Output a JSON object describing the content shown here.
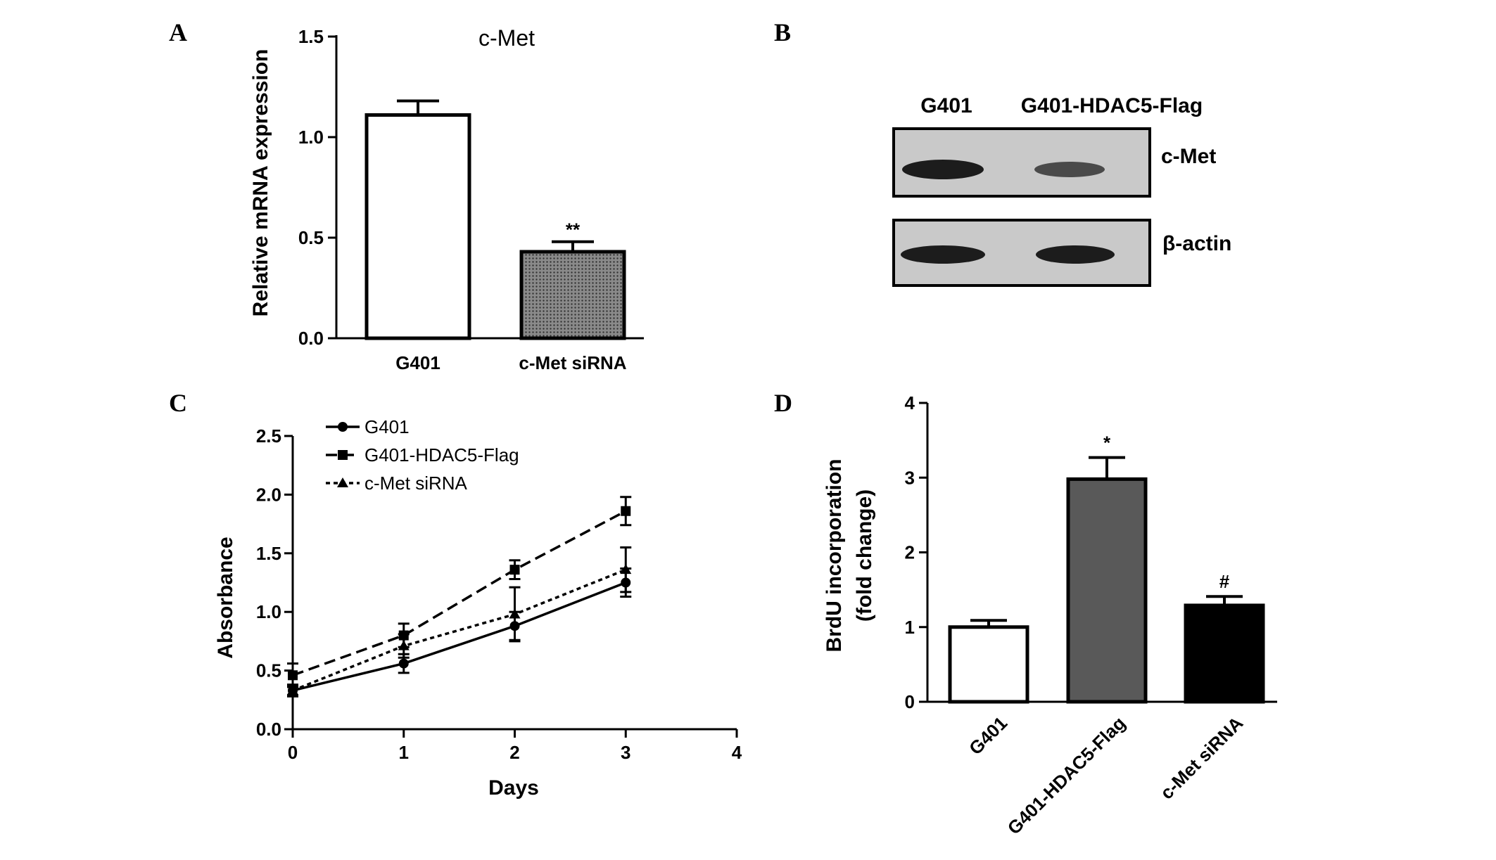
{
  "panels": {
    "A": "A",
    "B": "B",
    "C": "C",
    "D": "D"
  },
  "chart_data": [
    {
      "panel": "A",
      "type": "bar",
      "title": "c-Met",
      "ylabel": "Relative mRNA expression",
      "xlabel": "",
      "ylim": [
        0,
        1.5
      ],
      "yticks": [
        "0.0",
        "0.5",
        "1.0",
        "1.5"
      ],
      "categories": [
        "G401",
        "c-Met siRNA"
      ],
      "values": [
        1.11,
        0.43
      ],
      "errors": [
        0.07,
        0.05
      ],
      "annotations": [
        "",
        "**"
      ],
      "fills": [
        "#ffffff",
        "#666666"
      ]
    },
    {
      "panel": "C",
      "type": "line",
      "xlabel": "Days",
      "ylabel": "Absorbance",
      "xlim": [
        0,
        4
      ],
      "ylim": [
        0,
        2.5
      ],
      "xticks": [
        "0",
        "1",
        "2",
        "3",
        "4"
      ],
      "yticks": [
        "0.0",
        "0.5",
        "1.0",
        "1.5",
        "2.0",
        "2.5"
      ],
      "x": [
        0,
        1,
        2,
        3
      ],
      "legend_position": "top-left",
      "series": [
        {
          "name": "G401",
          "marker": "circle",
          "dash": "solid",
          "values": [
            0.33,
            0.56,
            0.88,
            1.25
          ],
          "errors": [
            0.04,
            0.08,
            0.12,
            0.12
          ]
        },
        {
          "name": "G401-HDAC5-Flag",
          "marker": "square",
          "dash": "dashed",
          "values": [
            0.46,
            0.8,
            1.36,
            1.86
          ],
          "errors": [
            0.1,
            0.1,
            0.08,
            0.12
          ]
        },
        {
          "name": "c-Met siRNA",
          "marker": "triangle",
          "dash": "dotted",
          "values": [
            0.33,
            0.71,
            0.98,
            1.36
          ],
          "errors": [
            0.05,
            0.1,
            0.23,
            0.19
          ]
        }
      ]
    },
    {
      "panel": "D",
      "type": "bar",
      "ylabel_lines": [
        "BrdU incorporation",
        "(fold change)"
      ],
      "xlabel": "",
      "ylim": [
        0,
        4
      ],
      "yticks": [
        "0",
        "1",
        "2",
        "3",
        "4"
      ],
      "categories": [
        "G401",
        "G401-HDAC5-Flag",
        "c-Met siRNA"
      ],
      "values": [
        1.0,
        2.98,
        1.29
      ],
      "errors": [
        0.09,
        0.29,
        0.12
      ],
      "annotations": [
        "",
        "*",
        "#"
      ],
      "fills": [
        "#ffffff",
        "#595959",
        "#000000"
      ]
    }
  ],
  "blot": {
    "columns": [
      "G401",
      "G401-HDAC5-Flag"
    ],
    "rows": [
      "c-Met",
      "β-actin"
    ]
  }
}
